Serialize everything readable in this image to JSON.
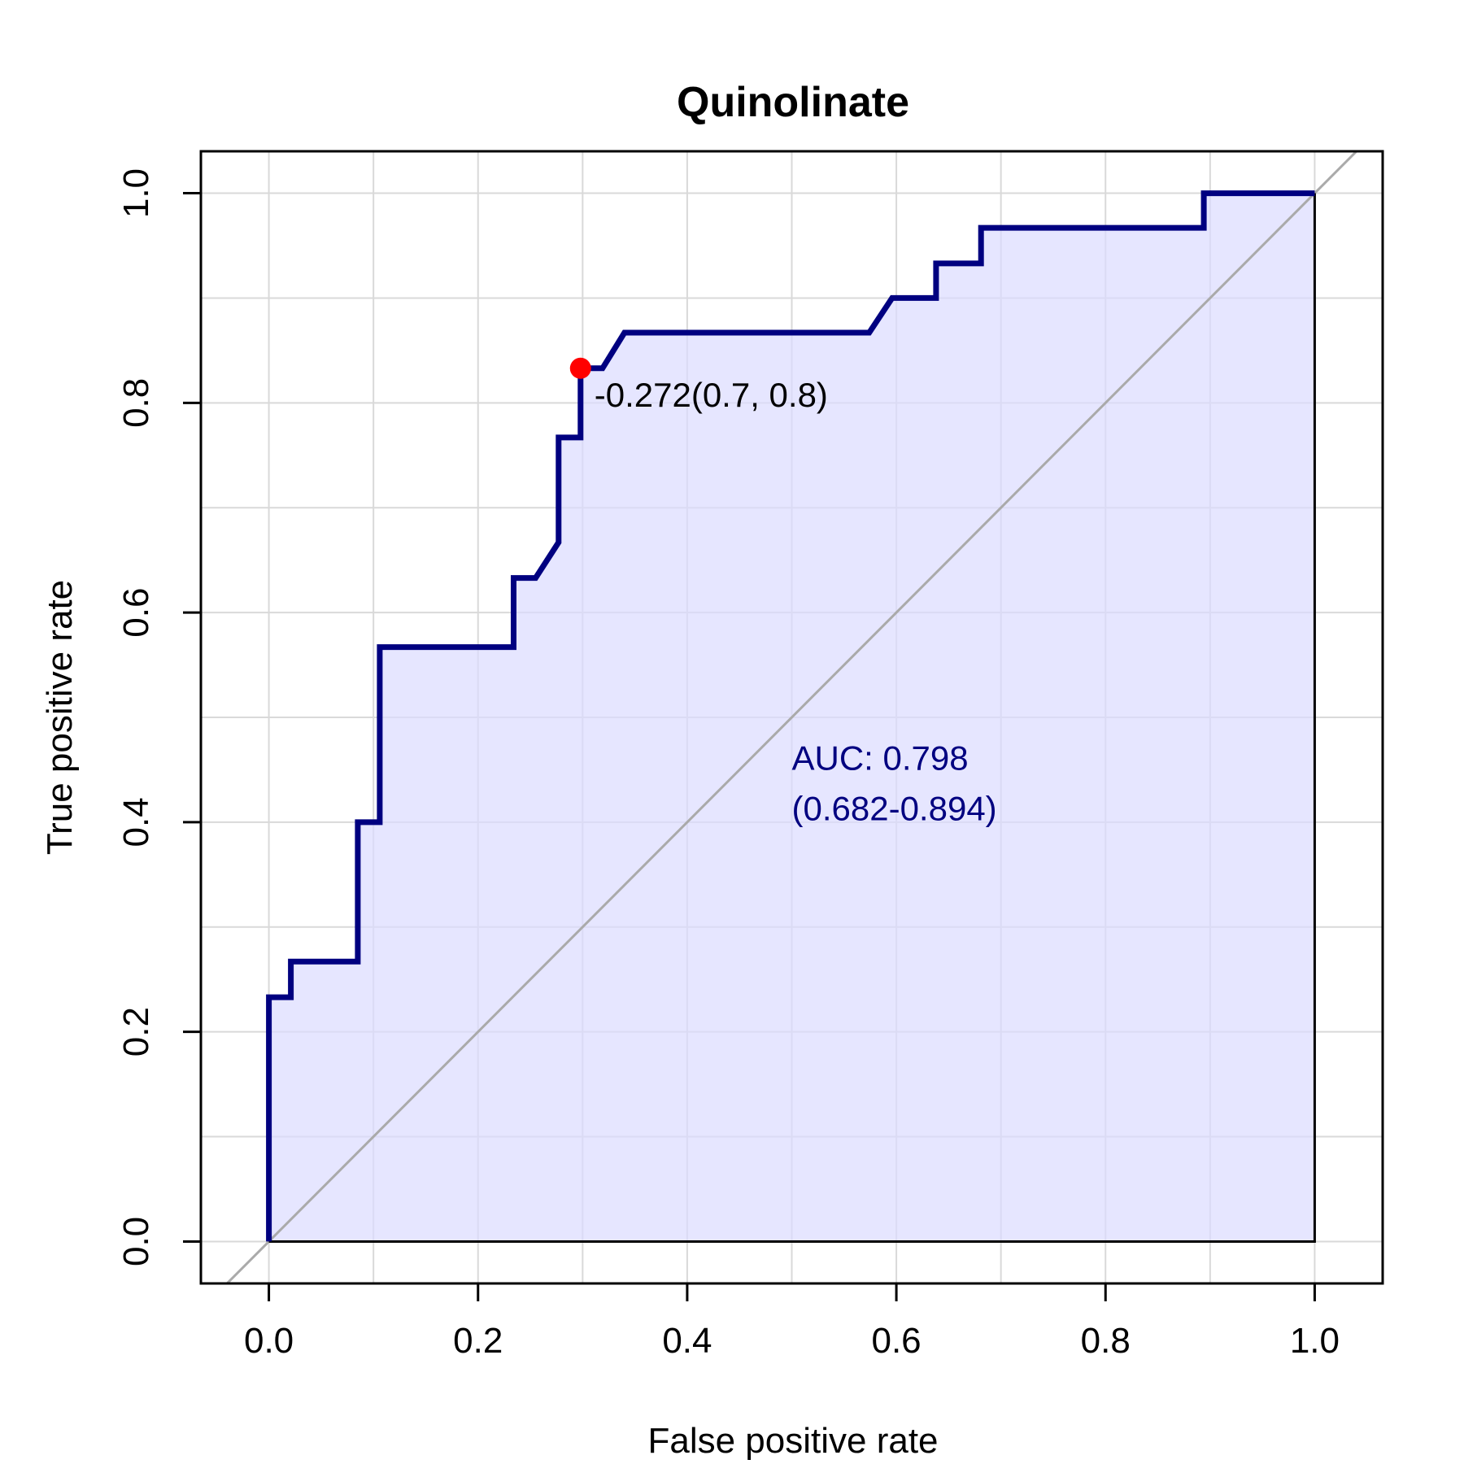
{
  "chart_data": {
    "type": "line",
    "title": "Quinolinate",
    "xlabel": "False positive rate",
    "ylabel": "True positive rate",
    "xlim": [
      -0.065,
      1.065
    ],
    "ylim": [
      -0.04,
      1.04
    ],
    "xticks": [
      0.0,
      0.2,
      0.4,
      0.6,
      0.8,
      1.0
    ],
    "xtick_labels": [
      "0.0",
      "0.2",
      "0.4",
      "0.6",
      "0.8",
      "1.0"
    ],
    "yticks": [
      0.0,
      0.2,
      0.4,
      0.6,
      0.8,
      1.0
    ],
    "ytick_labels": [
      "0.0",
      "0.2",
      "0.4",
      "0.6",
      "0.8",
      "1.0"
    ],
    "grid": true,
    "grid_step": 0.1,
    "colors": {
      "curve": "#000080",
      "fill": "#dcdcff",
      "diagonal": "#aaaaaa",
      "grid": "#d9d9d9",
      "threshold_point": "#ff0000",
      "auc_text": "#000080"
    },
    "series": [
      {
        "x": [
          0.0,
          0.0,
          0.021,
          0.021,
          0.085,
          0.085,
          0.106,
          0.106,
          0.234,
          0.234,
          0.255,
          0.277,
          0.277,
          0.298,
          0.298,
          0.319,
          0.34,
          0.574,
          0.596,
          0.638,
          0.638,
          0.681,
          0.681,
          0.894,
          0.894,
          1.0,
          1.0
        ],
        "y": [
          0.0,
          0.233,
          0.233,
          0.267,
          0.267,
          0.4,
          0.4,
          0.567,
          0.567,
          0.633,
          0.633,
          0.667,
          0.767,
          0.767,
          0.833,
          0.833,
          0.867,
          0.867,
          0.9,
          0.9,
          0.933,
          0.933,
          0.967,
          0.967,
          1.0,
          1.0,
          0.0
        ]
      }
    ],
    "reference_line": {
      "x": [
        0,
        1
      ],
      "y": [
        0,
        1
      ]
    },
    "threshold": {
      "x": 0.298,
      "y": 0.833,
      "label": "-0.272(0.7, 0.8)"
    },
    "auc": {
      "line1": "AUC: 0.798",
      "line2": "(0.682-0.894)",
      "x": 0.5,
      "y": 0.45
    }
  }
}
